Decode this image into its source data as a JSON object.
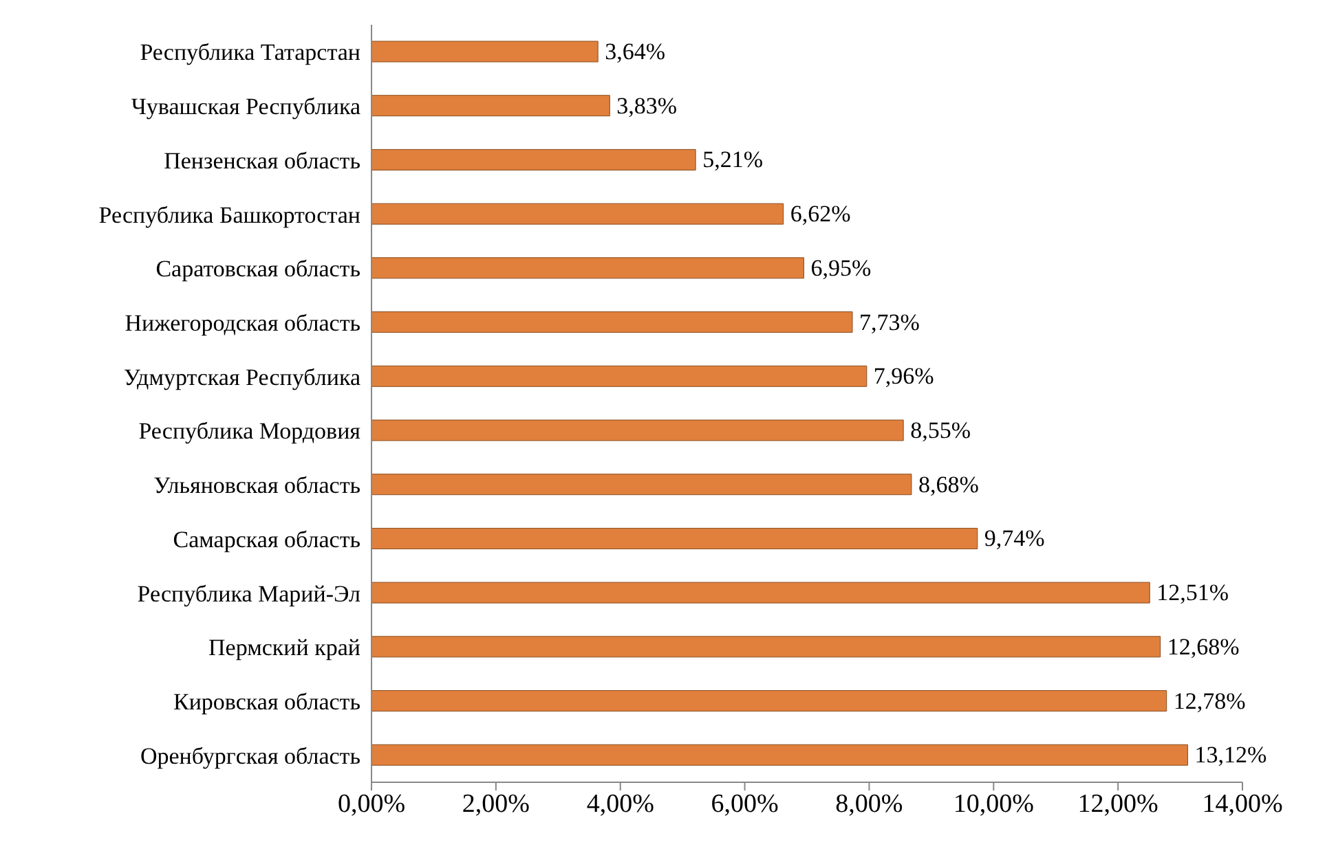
{
  "chart_data": {
    "type": "bar",
    "orientation": "horizontal",
    "categories": [
      "Республика Татарстан",
      "Чувашская Республика",
      "Пензенская область",
      "Республика Башкортостан",
      "Саратовская область",
      "Нижегородская область",
      "Удмуртская Республика",
      "Республика Мордовия",
      "Ульяновская область",
      "Самарская область",
      "Республика Марий-Эл",
      "Пермский край",
      "Кировская область",
      "Оренбургская область"
    ],
    "values": [
      3.64,
      3.83,
      5.21,
      6.62,
      6.95,
      7.73,
      7.96,
      8.55,
      8.68,
      9.74,
      12.51,
      12.68,
      12.78,
      13.12
    ],
    "value_labels": [
      "3,64%",
      "3,83%",
      "5,21%",
      "6,62%",
      "6,95%",
      "7,73%",
      "7,96%",
      "8,55%",
      "8,68%",
      "9,74%",
      "12,51%",
      "12,68%",
      "12,78%",
      "13,12%"
    ],
    "color": "#e0803c",
    "xlim": [
      0,
      14
    ],
    "xticks": [
      {
        "value": 0,
        "label": "0,00%"
      },
      {
        "value": 2,
        "label": "2,00%"
      },
      {
        "value": 4,
        "label": "4,00%"
      },
      {
        "value": 6,
        "label": "6,00%"
      },
      {
        "value": 8,
        "label": "8,00%"
      },
      {
        "value": 10,
        "label": "10,00%"
      },
      {
        "value": 12,
        "label": "12,00%"
      },
      {
        "value": 14,
        "label": "14,00%"
      }
    ],
    "grid": false,
    "legend": false
  }
}
